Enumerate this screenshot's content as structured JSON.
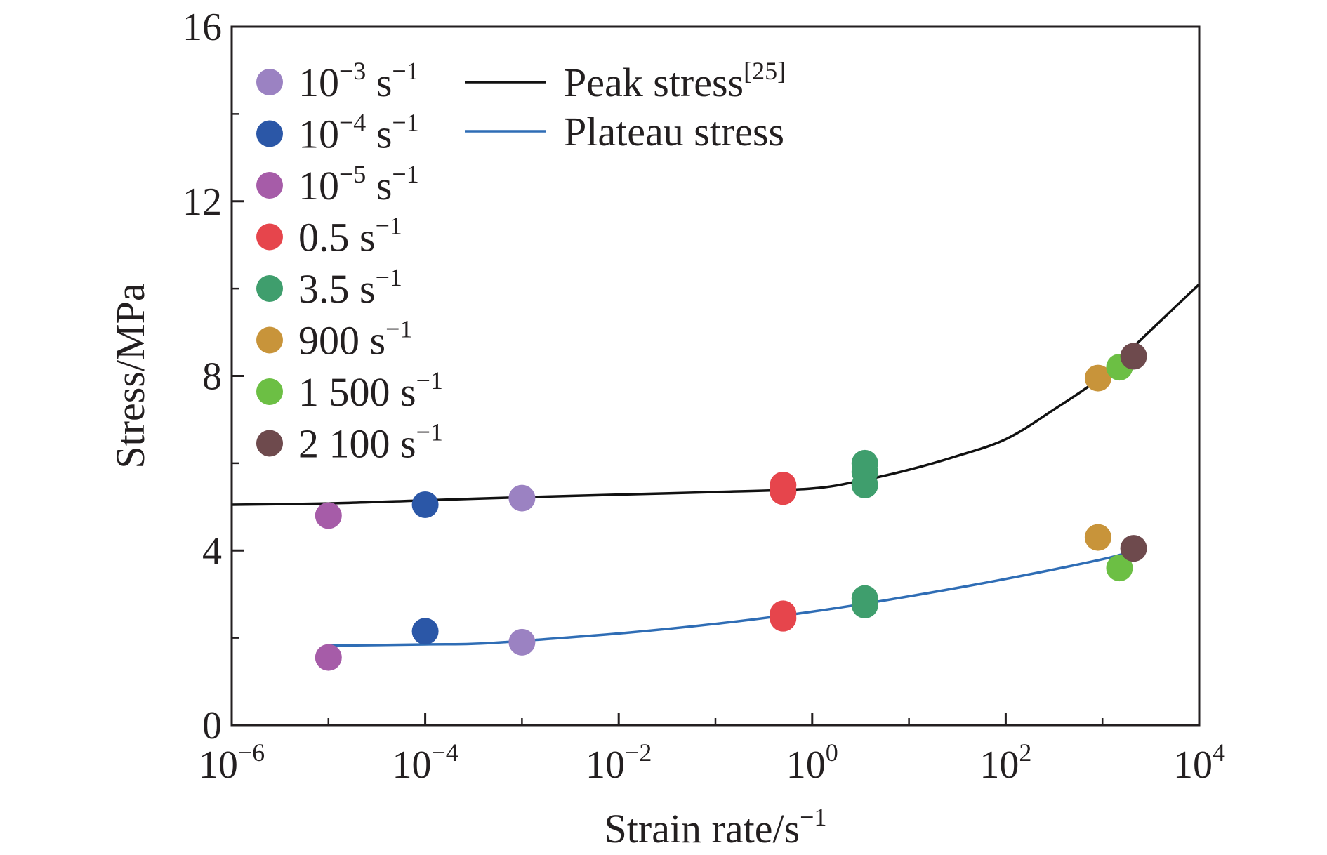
{
  "chart_data": {
    "type": "scatter",
    "xlabel": "Strain rate/s",
    "xlabel_exponent": "−1",
    "ylabel": "Stress/MPa",
    "xscale": "log",
    "xlim": [
      1e-06,
      10000
    ],
    "ylim": [
      0,
      16
    ],
    "grid": false,
    "legend_position": "top-left",
    "x_ticks": [
      {
        "value": 1e-06,
        "base": "10",
        "exponent": "−6"
      },
      {
        "value": 0.0001,
        "base": "10",
        "exponent": "−4"
      },
      {
        "value": 0.01,
        "base": "10",
        "exponent": "−2"
      },
      {
        "value": 1,
        "base": "10",
        "exponent": "0"
      },
      {
        "value": 100,
        "base": "10",
        "exponent": "2"
      },
      {
        "value": 10000,
        "base": "10",
        "exponent": "4"
      }
    ],
    "y_ticks": [
      {
        "value": 0,
        "label": "0"
      },
      {
        "value": 4,
        "label": "4"
      },
      {
        "value": 8,
        "label": "8"
      },
      {
        "value": 12,
        "label": "12"
      },
      {
        "value": 16,
        "label": "16"
      }
    ],
    "point_groups": [
      {
        "label_main": "10",
        "label_exp": "−3",
        "label_unit": " s",
        "label_unit_exp": "−1",
        "color": "#9b82c2",
        "points": [
          {
            "x": 0.001,
            "y": 5.2
          },
          {
            "x": 0.001,
            "y": 1.9
          }
        ]
      },
      {
        "label_main": "10",
        "label_exp": "−4",
        "label_unit": " s",
        "label_unit_exp": "−1",
        "color": "#2b57a7",
        "points": [
          {
            "x": 0.0001,
            "y": 5.05
          },
          {
            "x": 0.0001,
            "y": 2.15
          }
        ]
      },
      {
        "label_main": "10",
        "label_exp": "−5",
        "label_unit": " s",
        "label_unit_exp": "−1",
        "color": "#a65ca8",
        "points": [
          {
            "x": 1e-05,
            "y": 4.8
          },
          {
            "x": 1e-05,
            "y": 1.55
          }
        ]
      },
      {
        "label_main": "0.5",
        "label_exp": "",
        "label_unit": " s",
        "label_unit_exp": "−1",
        "color": "#e6454c",
        "points": [
          {
            "x": 0.5,
            "y": 5.5
          },
          {
            "x": 0.5,
            "y": 5.35
          },
          {
            "x": 0.5,
            "y": 2.55
          },
          {
            "x": 0.5,
            "y": 2.45
          }
        ]
      },
      {
        "label_main": "3.5",
        "label_exp": "",
        "label_unit": " s",
        "label_unit_exp": "−1",
        "color": "#3f9e6d",
        "points": [
          {
            "x": 3.5,
            "y": 6.0
          },
          {
            "x": 3.5,
            "y": 5.8
          },
          {
            "x": 3.5,
            "y": 5.5
          },
          {
            "x": 3.5,
            "y": 2.9
          },
          {
            "x": 3.5,
            "y": 2.75
          }
        ]
      },
      {
        "label_main": "900",
        "label_exp": "",
        "label_unit": " s",
        "label_unit_exp": "−1",
        "color": "#c8943a",
        "points": [
          {
            "x": 900,
            "y": 7.95
          },
          {
            "x": 900,
            "y": 4.3
          }
        ]
      },
      {
        "label_main": "1 500",
        "label_exp": "",
        "label_unit": " s",
        "label_unit_exp": "−1",
        "color": "#6cbf44",
        "points": [
          {
            "x": 1500,
            "y": 8.2
          },
          {
            "x": 1500,
            "y": 3.6
          }
        ]
      },
      {
        "label_main": "2 100",
        "label_exp": "",
        "label_unit": " s",
        "label_unit_exp": "−1",
        "color": "#6e4a4d",
        "points": [
          {
            "x": 2100,
            "y": 8.45
          },
          {
            "x": 2100,
            "y": 4.05
          }
        ]
      }
    ],
    "series": [
      {
        "name": "Peak stress",
        "name_sup": "[25]",
        "color": "#111111",
        "x": [
          1e-06,
          1e-05,
          0.0001,
          0.001,
          0.01,
          0.1,
          1,
          3.5,
          10,
          30,
          100,
          300,
          1000,
          3000,
          10000
        ],
        "y": [
          5.05,
          5.08,
          5.15,
          5.22,
          5.28,
          5.34,
          5.42,
          5.62,
          5.85,
          6.15,
          6.55,
          7.2,
          8.0,
          9.0,
          10.1
        ]
      },
      {
        "name": "Plateau stress",
        "name_sup": "",
        "color": "#2f6db5",
        "x": [
          1e-05,
          0.0001,
          0.0003,
          0.001,
          0.01,
          0.1,
          1,
          10,
          100,
          1000,
          2100
        ],
        "y": [
          1.82,
          1.85,
          1.86,
          1.93,
          2.1,
          2.32,
          2.6,
          2.95,
          3.35,
          3.8,
          4.0
        ]
      }
    ]
  }
}
